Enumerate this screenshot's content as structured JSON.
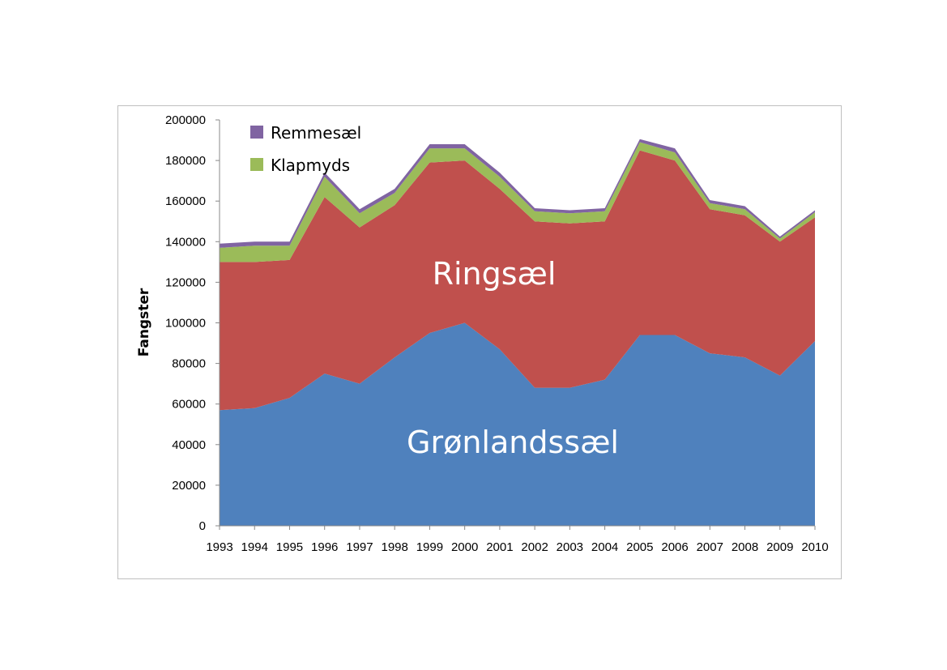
{
  "chart_data": {
    "type": "area",
    "stacked": true,
    "ylabel": "Fangster",
    "xlabel": "",
    "title": "",
    "ylim": [
      0,
      200000
    ],
    "yticks": [
      0,
      20000,
      40000,
      60000,
      80000,
      100000,
      120000,
      140000,
      160000,
      180000,
      200000
    ],
    "x": [
      "1993",
      "1994",
      "1995",
      "1996",
      "1997",
      "1998",
      "1999",
      "2000",
      "2001",
      "2002",
      "2003",
      "2004",
      "2005",
      "2006",
      "2007",
      "2008",
      "2009",
      "2010"
    ],
    "series": [
      {
        "name": "Grønlandssæl",
        "color": "#4f81bd",
        "values": [
          57000,
          58000,
          63000,
          75000,
          70000,
          83000,
          95000,
          100000,
          87000,
          68000,
          68000,
          72000,
          94000,
          94000,
          85000,
          83000,
          74000,
          91000
        ]
      },
      {
        "name": "Ringsæl",
        "color": "#c0504d",
        "values": [
          73000,
          72000,
          68000,
          87000,
          77000,
          75000,
          84000,
          80000,
          79000,
          82000,
          81000,
          78000,
          91000,
          86000,
          71000,
          70000,
          66000,
          61000
        ]
      },
      {
        "name": "Klapmyds",
        "color": "#9bbb59",
        "values": [
          7000,
          8000,
          7000,
          10000,
          7000,
          6000,
          7000,
          6000,
          6000,
          5000,
          5000,
          5000,
          4000,
          4000,
          3000,
          3000,
          1500,
          2500
        ]
      },
      {
        "name": "Remmesæl",
        "color": "#8064a2",
        "values": [
          2000,
          2000,
          2000,
          2000,
          2000,
          2000,
          2000,
          2000,
          2000,
          1500,
          1500,
          1500,
          1500,
          2000,
          1500,
          1500,
          1000,
          1000
        ]
      }
    ],
    "legend": {
      "placement": "top-left",
      "items": [
        "Remmesæl",
        "Klapmyds"
      ]
    },
    "in_chart_labels": [
      "Ringsæl",
      "Grønlandssæl"
    ],
    "grid": false
  }
}
